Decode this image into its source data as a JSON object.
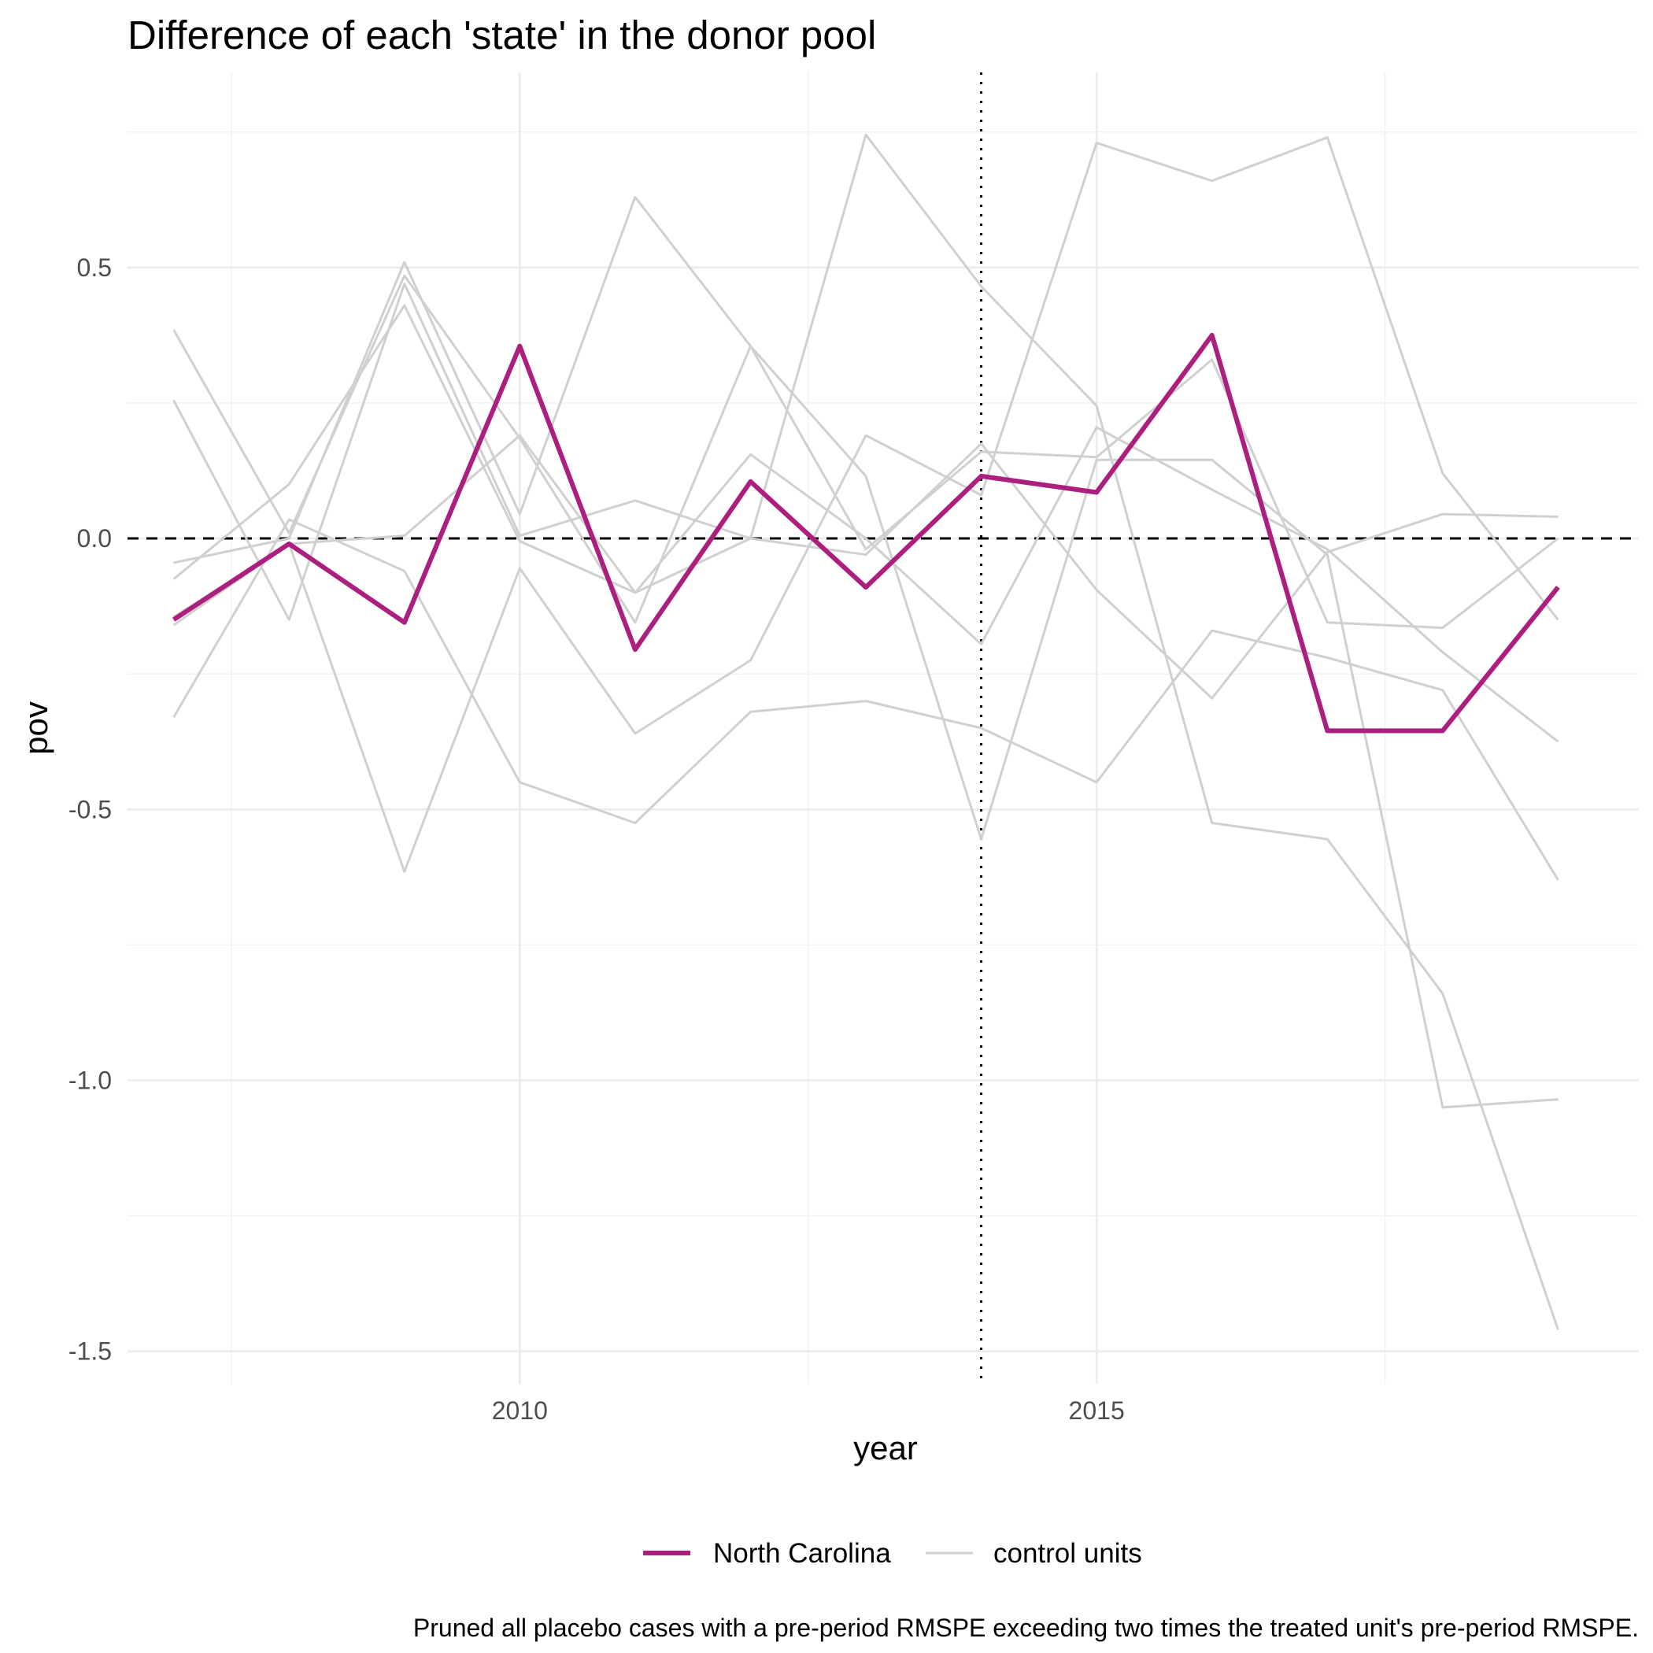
{
  "chart_data": {
    "type": "line",
    "title": "Difference of each 'state' in the donor pool",
    "xlabel": "year",
    "ylabel": "pov",
    "caption": "Pruned all placebo cases with a pre-period RMSPE exceeding two times the treated unit's pre-period RMSPE.",
    "xlim": [
      2006.6,
      2019.7
    ],
    "ylim": [
      -1.56,
      0.86
    ],
    "x_ticks": [
      2010,
      2015
    ],
    "x_tick_labels": [
      "2010",
      "2015"
    ],
    "y_ticks": [
      0.5,
      0.0,
      -0.5,
      -1.0,
      -1.5
    ],
    "y_tick_labels": [
      "0.5",
      "0.0",
      "-0.5",
      "-1.0",
      "-1.5"
    ],
    "reference_lines": {
      "horizontal_y": 0.0,
      "vertical_x": 2014
    },
    "grid": true,
    "legend_position": "bottom",
    "x": [
      2007,
      2008,
      2009,
      2010,
      2011,
      2012,
      2013,
      2014,
      2015,
      2016,
      2017,
      2018,
      2019
    ],
    "treated": {
      "name": "North Carolina",
      "color": "#ad1f7f",
      "values": [
        -0.15,
        -0.01,
        -0.155,
        0.355,
        -0.205,
        0.105,
        -0.09,
        0.115,
        0.085,
        0.375,
        -0.355,
        -0.355,
        -0.09
      ]
    },
    "controls_label": "control units",
    "controls_color": "#d0d0d0",
    "controls": [
      {
        "values": [
          0.385,
          0.01,
          0.485,
          0.185,
          -0.155,
          0.355,
          0.115,
          -0.555,
          0.145,
          0.145,
          -0.03,
          -1.05,
          -1.035
        ]
      },
      {
        "values": [
          0.255,
          -0.15,
          0.47,
          0.005,
          0.07,
          0.0,
          -0.03,
          0.175,
          -0.095,
          -0.295,
          -0.025,
          0.045,
          0.04
        ]
      },
      {
        "values": [
          -0.045,
          0.0,
          0.51,
          0.045,
          0.63,
          0.355,
          -0.02,
          0.16,
          0.15,
          0.33,
          -0.155,
          -0.165,
          0.0
        ]
      },
      {
        "values": [
          -0.075,
          0.1,
          0.43,
          -0.005,
          -0.1,
          0.0,
          0.745,
          0.465,
          0.245,
          -0.525,
          -0.555,
          -0.84,
          -1.46
        ]
      },
      {
        "values": [
          -0.33,
          0.035,
          -0.06,
          -0.45,
          -0.525,
          -0.32,
          -0.3,
          -0.35,
          -0.45,
          -0.17,
          -0.22,
          -0.28,
          -0.63
        ]
      },
      {
        "values": [
          -0.145,
          -0.01,
          -0.615,
          -0.055,
          -0.36,
          -0.225,
          0.19,
          0.08,
          0.73,
          0.66,
          0.74,
          0.12,
          -0.15
        ]
      },
      {
        "values": [
          -0.16,
          -0.01,
          0.005,
          0.19,
          -0.1,
          0.155,
          0.0,
          -0.195,
          0.205,
          0.09,
          -0.02,
          -0.21,
          -0.375
        ]
      }
    ]
  }
}
